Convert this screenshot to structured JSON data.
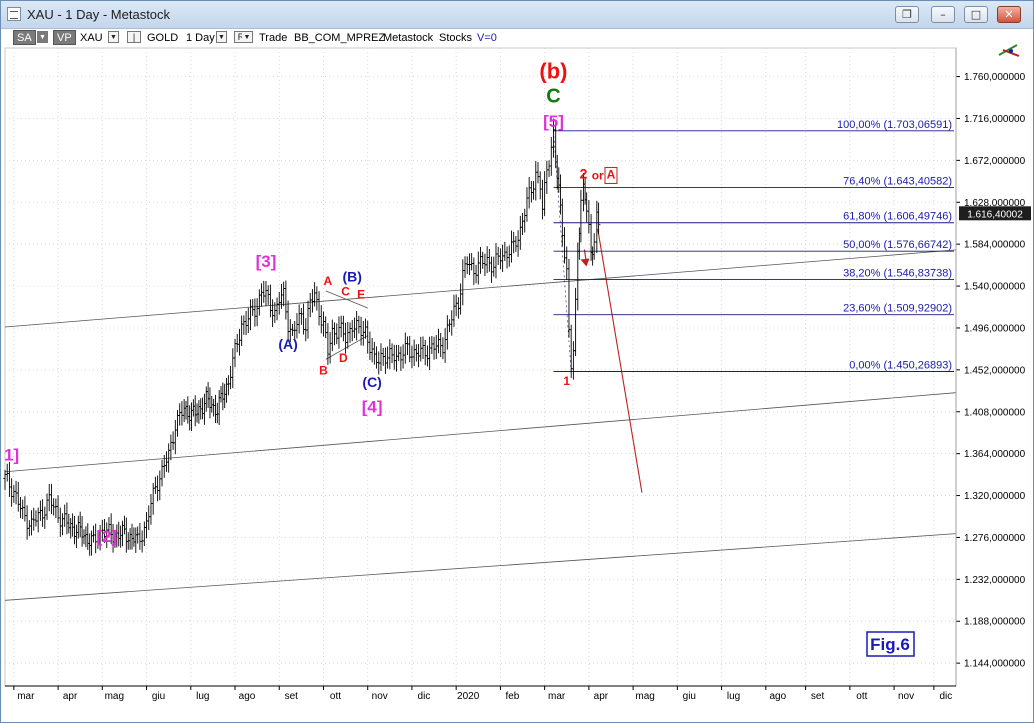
{
  "window": {
    "title": "XAU - 1 Day - Metastock",
    "buttons": {
      "restore_glyph": "❐",
      "minimize_glyph": "–",
      "maximize_glyph": "□",
      "close_glyph": "✕"
    }
  },
  "toolbar": {
    "sa": "SA",
    "vp": "VP",
    "symbol": "XAU",
    "sep1": "|",
    "security": "GOLD",
    "period": "1 Day",
    "r": "R",
    "trade": "Trade",
    "template": "BB_COM_MPREZ",
    "source": "Metastock",
    "kind": "Stocks",
    "v": "V=0"
  },
  "chart_data": {
    "type": "line",
    "style": "ohlc-bars",
    "price_axis": {
      "min": 1120,
      "max": 1790,
      "ticks": [
        "1.760,000000",
        "1.716,000000",
        "1.672,000000",
        "1.628,000000",
        "1.584,000000",
        "1.540,000000",
        "1.496,000000",
        "1.452,000000",
        "1.408,000000",
        "1.364,000000",
        "1.320,000000",
        "1.276,000000",
        "1.232,000000",
        "1.188,000000",
        "1.144,000000"
      ],
      "tick_values": [
        1760,
        1716,
        1672,
        1628,
        1584,
        1540,
        1496,
        1452,
        1408,
        1364,
        1320,
        1276,
        1232,
        1188,
        1144
      ],
      "current_price_label": "1.616,40002",
      "current_price": 1616.4
    },
    "time_axis": {
      "labels": [
        "mar",
        "apr",
        "mag",
        "giu",
        "lug",
        "ago",
        "set",
        "ott",
        "nov",
        "dic",
        "2020",
        "feb",
        "mar",
        "apr",
        "mag",
        "giu",
        "lug",
        "ago",
        "set",
        "ott",
        "nov",
        "dic"
      ],
      "label_month_index": [
        2,
        3,
        4,
        5,
        6,
        7,
        8,
        9,
        10,
        11,
        12,
        13,
        14,
        15,
        16,
        17,
        18,
        19,
        19.9,
        20.9,
        21.9,
        22.8
      ],
      "start_month_index": 1.8,
      "end_month_index": 23.3
    },
    "series": [
      {
        "values": [
          [
            1.8,
            1338
          ],
          [
            2.0,
            1325
          ],
          [
            2.2,
            1300
          ],
          [
            2.4,
            1290
          ],
          [
            2.6,
            1300
          ],
          [
            2.8,
            1315
          ],
          [
            3.0,
            1300
          ],
          [
            3.2,
            1290
          ],
          [
            3.5,
            1282
          ],
          [
            3.8,
            1270
          ],
          [
            4.0,
            1285
          ],
          [
            4.2,
            1278
          ],
          [
            4.5,
            1280
          ],
          [
            4.8,
            1272
          ],
          [
            5.0,
            1290
          ],
          [
            5.2,
            1330
          ],
          [
            5.35,
            1345
          ],
          [
            5.5,
            1362
          ],
          [
            5.65,
            1395
          ],
          [
            5.85,
            1410
          ],
          [
            6.1,
            1405
          ],
          [
            6.35,
            1420
          ],
          [
            6.6,
            1410
          ],
          [
            6.85,
            1440
          ],
          [
            7.0,
            1470
          ],
          [
            7.15,
            1500
          ],
          [
            7.3,
            1505
          ],
          [
            7.5,
            1520
          ],
          [
            7.6,
            1535
          ],
          [
            7.75,
            1525
          ],
          [
            7.9,
            1512
          ],
          [
            8.0,
            1525
          ],
          [
            8.1,
            1530
          ],
          [
            8.2,
            1502
          ],
          [
            8.3,
            1488
          ],
          [
            8.4,
            1500
          ],
          [
            8.5,
            1510
          ],
          [
            8.6,
            1498
          ],
          [
            8.7,
            1522
          ],
          [
            8.8,
            1530
          ],
          [
            8.9,
            1515
          ],
          [
            9.0,
            1498
          ],
          [
            9.1,
            1470
          ],
          [
            9.2,
            1492
          ],
          [
            9.35,
            1495
          ],
          [
            9.5,
            1485
          ],
          [
            9.65,
            1500
          ],
          [
            9.8,
            1492
          ],
          [
            9.95,
            1495
          ],
          [
            10.05,
            1475
          ],
          [
            10.15,
            1460
          ],
          [
            10.3,
            1468
          ],
          [
            10.45,
            1462
          ],
          [
            10.6,
            1470
          ],
          [
            10.75,
            1465
          ],
          [
            10.9,
            1475
          ],
          [
            11.1,
            1468
          ],
          [
            11.3,
            1472
          ],
          [
            11.5,
            1475
          ],
          [
            11.7,
            1480
          ],
          [
            11.85,
            1498
          ],
          [
            11.95,
            1515
          ],
          [
            12.05,
            1525
          ],
          [
            12.15,
            1550
          ],
          [
            12.25,
            1565
          ],
          [
            12.4,
            1558
          ],
          [
            12.55,
            1562
          ],
          [
            12.7,
            1568
          ],
          [
            12.85,
            1560
          ],
          [
            13.0,
            1572
          ],
          [
            13.15,
            1575
          ],
          [
            13.3,
            1580
          ],
          [
            13.45,
            1600
          ],
          [
            13.6,
            1628
          ],
          [
            13.7,
            1640
          ],
          [
            13.8,
            1660
          ],
          [
            13.9,
            1645
          ],
          [
            13.95,
            1620
          ],
          [
            14.05,
            1660
          ],
          [
            14.15,
            1690
          ],
          [
            14.2,
            1700
          ],
          [
            14.25,
            1670
          ],
          [
            14.32,
            1640
          ],
          [
            14.4,
            1600
          ],
          [
            14.5,
            1555
          ],
          [
            14.55,
            1490
          ],
          [
            14.6,
            1455
          ],
          [
            14.65,
            1470
          ],
          [
            14.7,
            1520
          ],
          [
            14.75,
            1580
          ],
          [
            14.82,
            1630
          ],
          [
            14.88,
            1640
          ],
          [
            14.95,
            1620
          ],
          [
            15.0,
            1600
          ],
          [
            15.05,
            1575
          ],
          [
            15.12,
            1590
          ],
          [
            15.18,
            1610
          ],
          [
            15.22,
            1600
          ]
        ]
      }
    ],
    "fib_levels": [
      {
        "label": "100,00% (1.703,06591)",
        "value": 1703.06591
      },
      {
        "label": "76,40% (1.643,40582)",
        "value": 1643.40582
      },
      {
        "label": "61,80% (1.606,49746)",
        "value": 1606.49746
      },
      {
        "label": "50,00% (1.576,66742)",
        "value": 1576.66742
      },
      {
        "label": "38,20% (1.546,83738)",
        "value": 1546.83738
      },
      {
        "label": "23,60% (1.509,92902)",
        "value": 1509.92902
      },
      {
        "label": "0,00% (1.450,26893)",
        "value": 1450.26893
      }
    ],
    "fib_start_month_index": 14.2,
    "trendlines": [
      {
        "from": [
          1.8,
          1497
        ],
        "to": [
          23.3,
          1578
        ]
      },
      {
        "from": [
          1.8,
          1345
        ],
        "to": [
          23.3,
          1428
        ]
      },
      {
        "from": [
          1.8,
          1210
        ],
        "to": [
          23.3,
          1280
        ]
      },
      {
        "from": [
          9.05,
          1535
        ],
        "to": [
          10.0,
          1517
        ]
      },
      {
        "from": [
          9.05,
          1463
        ],
        "to": [
          10.0,
          1488
        ]
      }
    ],
    "projection": [
      [
        15.2,
        1600
      ],
      [
        16.2,
        1323
      ]
    ],
    "annotations": [
      {
        "text": "(b)",
        "at": [
          14.2,
          1758
        ],
        "color": "#ee1111",
        "size": 22
      },
      {
        "text": "C",
        "at": [
          14.2,
          1733
        ],
        "color": "#117a11",
        "size": 20
      },
      {
        "text": "[5]",
        "at": [
          14.2,
          1707
        ],
        "color": "#e030d8",
        "size": 17
      },
      {
        "text": "[3]",
        "at": [
          7.7,
          1560
        ],
        "color": "#e030d8",
        "size": 17
      },
      {
        "text": "[4]",
        "at": [
          10.1,
          1407
        ],
        "color": "#e030d8",
        "size": 17
      },
      {
        "text": "[2]",
        "at": [
          4.1,
          1271
        ],
        "color": "#e030d8",
        "size": 17
      },
      {
        "text": "1]",
        "at": [
          1.95,
          1357
        ],
        "color": "#e030d8",
        "size": 17
      },
      {
        "text": "(A)",
        "at": [
          8.2,
          1474
        ],
        "color": "#1a1ab8",
        "size": 14
      },
      {
        "text": "(B)",
        "at": [
          9.65,
          1545
        ],
        "color": "#1a1ab8",
        "size": 14
      },
      {
        "text": "(C)",
        "at": [
          10.1,
          1434
        ],
        "color": "#1a1ab8",
        "size": 14
      },
      {
        "text": "A",
        "at": [
          9.1,
          1541
        ],
        "color": "#ee1111",
        "size": 12
      },
      {
        "text": "B",
        "at": [
          9.0,
          1447
        ],
        "color": "#ee1111",
        "size": 12
      },
      {
        "text": "C",
        "at": [
          9.5,
          1530
        ],
        "color": "#ee1111",
        "size": 12
      },
      {
        "text": "D",
        "at": [
          9.45,
          1460
        ],
        "color": "#ee1111",
        "size": 12
      },
      {
        "text": "E",
        "at": [
          9.85,
          1527
        ],
        "color": "#ee1111",
        "size": 12
      },
      {
        "text": "1",
        "at": [
          14.5,
          1436
        ],
        "color": "#ee1111",
        "size": 12
      },
      {
        "text": "2",
        "at": [
          14.88,
          1653
        ],
        "color": "#ee1111",
        "size": 14
      },
      {
        "text": "or",
        "at": [
          15.2,
          1652
        ],
        "color": "#ee1111",
        "size": 12
      },
      {
        "text": "A",
        "at": [
          15.5,
          1653
        ],
        "color": "#ee1111",
        "size": 12,
        "boxed": true
      }
    ],
    "figure_label": "Fig.6"
  }
}
